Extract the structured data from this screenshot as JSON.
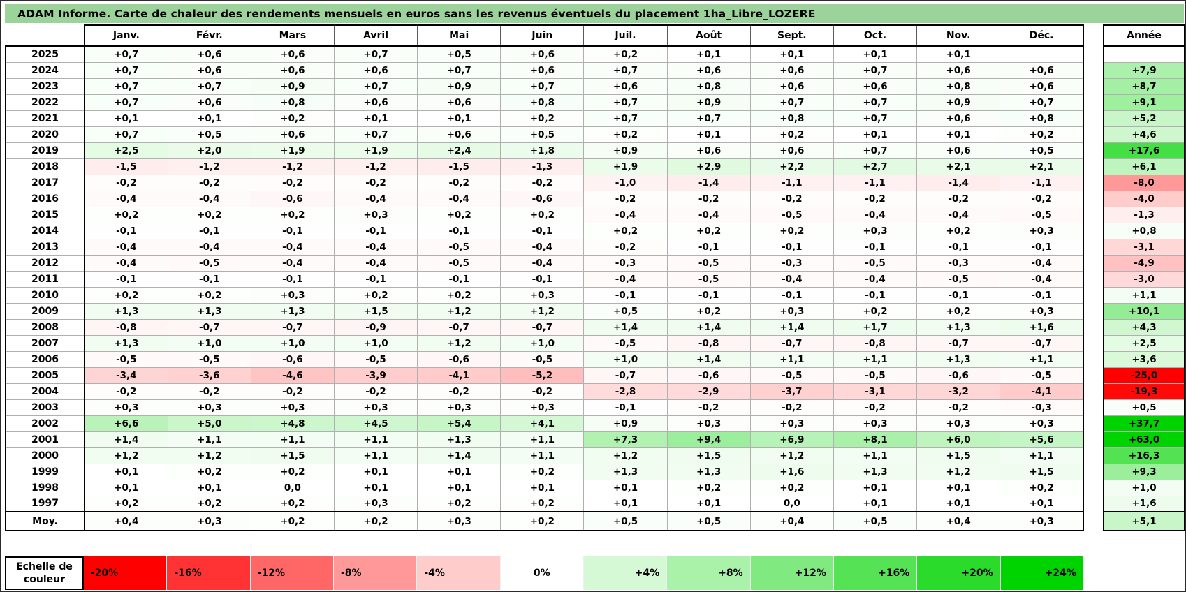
{
  "title": "ADAM Informe. Carte de chaleur des rendements mensuels en euros sans les revenus éventuels du placement 1ha_Libre_LOZERE",
  "colors": {
    "title_bg": "#9BD39B",
    "grid_line": "#B0B0B0",
    "table_border": "#000000",
    "zero_color": "#FFFFFF",
    "negative_max_color": "#FF0000",
    "positive_max_color": "#00D400"
  },
  "chart_data": {
    "type": "heatmap",
    "title": "ADAM Informe. Carte de chaleur des rendements mensuels en euros sans les revenus éventuels du placement 1ha_Libre_LOZERE",
    "columns": [
      "Janv.",
      "Févr.",
      "Mars",
      "Avril",
      "Mai",
      "Juin",
      "Juil.",
      "Août",
      "Sept.",
      "Oct.",
      "Nov.",
      "Déc."
    ],
    "annual_header": "Année",
    "rows": [
      "2025",
      "2024",
      "2023",
      "2022",
      "2021",
      "2020",
      "2019",
      "2018",
      "2017",
      "2016",
      "2015",
      "2014",
      "2013",
      "2012",
      "2011",
      "2010",
      "2009",
      "2008",
      "2007",
      "2006",
      "2005",
      "2004",
      "2003",
      "2002",
      "2001",
      "2000",
      "1999",
      "1998",
      "1997"
    ],
    "values": [
      [
        "+0,7",
        "+0,6",
        "+0,6",
        "+0,7",
        "+0,5",
        "+0,6",
        "+0,2",
        "+0,1",
        "+0,1",
        "+0,1",
        "+0,1",
        ""
      ],
      [
        "+0,7",
        "+0,6",
        "+0,6",
        "+0,6",
        "+0,7",
        "+0,6",
        "+0,7",
        "+0,6",
        "+0,6",
        "+0,7",
        "+0,6",
        "+0,6"
      ],
      [
        "+0,7",
        "+0,7",
        "+0,9",
        "+0,7",
        "+0,9",
        "+0,7",
        "+0,6",
        "+0,8",
        "+0,6",
        "+0,6",
        "+0,8",
        "+0,6"
      ],
      [
        "+0,7",
        "+0,6",
        "+0,8",
        "+0,6",
        "+0,6",
        "+0,8",
        "+0,7",
        "+0,9",
        "+0,7",
        "+0,7",
        "+0,9",
        "+0,7"
      ],
      [
        "+0,1",
        "+0,1",
        "+0,2",
        "+0,1",
        "+0,1",
        "+0,2",
        "+0,7",
        "+0,7",
        "+0,8",
        "+0,7",
        "+0,6",
        "+0,8"
      ],
      [
        "+0,7",
        "+0,5",
        "+0,6",
        "+0,7",
        "+0,6",
        "+0,5",
        "+0,2",
        "+0,1",
        "+0,2",
        "+0,1",
        "+0,1",
        "+0,2"
      ],
      [
        "+2,5",
        "+2,0",
        "+1,9",
        "+1,9",
        "+2,4",
        "+1,8",
        "+0,9",
        "+0,6",
        "+0,6",
        "+0,7",
        "+0,6",
        "+0,5"
      ],
      [
        "-1,5",
        "-1,2",
        "-1,2",
        "-1,2",
        "-1,5",
        "-1,3",
        "+1,9",
        "+2,9",
        "+2,2",
        "+2,7",
        "+2,1",
        "+2,1"
      ],
      [
        "-0,2",
        "-0,2",
        "-0,2",
        "-0,2",
        "-0,2",
        "-0,2",
        "-1,0",
        "-1,4",
        "-1,1",
        "-1,1",
        "-1,4",
        "-1,1"
      ],
      [
        "-0,4",
        "-0,4",
        "-0,6",
        "-0,4",
        "-0,4",
        "-0,6",
        "-0,2",
        "-0,2",
        "-0,2",
        "-0,2",
        "-0,2",
        "-0,2"
      ],
      [
        "+0,2",
        "+0,2",
        "+0,2",
        "+0,3",
        "+0,2",
        "+0,2",
        "-0,4",
        "-0,4",
        "-0,5",
        "-0,4",
        "-0,4",
        "-0,5"
      ],
      [
        "-0,1",
        "-0,1",
        "-0,1",
        "-0,1",
        "-0,1",
        "-0,1",
        "+0,2",
        "+0,2",
        "+0,2",
        "+0,3",
        "+0,2",
        "+0,3"
      ],
      [
        "-0,4",
        "-0,4",
        "-0,4",
        "-0,4",
        "-0,5",
        "-0,4",
        "-0,2",
        "-0,1",
        "-0,1",
        "-0,1",
        "-0,1",
        "-0,1"
      ],
      [
        "-0,4",
        "-0,5",
        "-0,4",
        "-0,4",
        "-0,5",
        "-0,4",
        "-0,3",
        "-0,5",
        "-0,3",
        "-0,5",
        "-0,3",
        "-0,4"
      ],
      [
        "-0,1",
        "-0,1",
        "-0,1",
        "-0,1",
        "-0,1",
        "-0,1",
        "-0,4",
        "-0,5",
        "-0,4",
        "-0,4",
        "-0,5",
        "-0,4"
      ],
      [
        "+0,2",
        "+0,2",
        "+0,3",
        "+0,2",
        "+0,2",
        "+0,3",
        "-0,1",
        "-0,1",
        "-0,1",
        "-0,1",
        "-0,1",
        "-0,1"
      ],
      [
        "+1,3",
        "+1,3",
        "+1,3",
        "+1,5",
        "+1,2",
        "+1,2",
        "+0,5",
        "+0,2",
        "+0,3",
        "+0,2",
        "+0,2",
        "+0,3"
      ],
      [
        "-0,8",
        "-0,7",
        "-0,7",
        "-0,9",
        "-0,7",
        "-0,7",
        "+1,4",
        "+1,4",
        "+1,4",
        "+1,7",
        "+1,3",
        "+1,6"
      ],
      [
        "+1,3",
        "+1,0",
        "+1,0",
        "+1,0",
        "+1,2",
        "+1,0",
        "-0,5",
        "-0,8",
        "-0,7",
        "-0,8",
        "-0,7",
        "-0,7"
      ],
      [
        "-0,5",
        "-0,5",
        "-0,6",
        "-0,5",
        "-0,6",
        "-0,5",
        "+1,0",
        "+1,4",
        "+1,1",
        "+1,1",
        "+1,3",
        "+1,1"
      ],
      [
        "-3,4",
        "-3,6",
        "-4,6",
        "-3,9",
        "-4,1",
        "-5,2",
        "-0,7",
        "-0,6",
        "-0,5",
        "-0,5",
        "-0,6",
        "-0,5"
      ],
      [
        "-0,2",
        "-0,2",
        "-0,2",
        "-0,2",
        "-0,2",
        "-0,2",
        "-2,8",
        "-2,9",
        "-3,7",
        "-3,1",
        "-3,2",
        "-4,1"
      ],
      [
        "+0,3",
        "+0,3",
        "+0,3",
        "+0,3",
        "+0,3",
        "+0,3",
        "-0,1",
        "-0,2",
        "-0,2",
        "-0,2",
        "-0,2",
        "-0,3"
      ],
      [
        "+6,6",
        "+5,0",
        "+4,8",
        "+4,5",
        "+5,4",
        "+4,1",
        "+0,9",
        "+0,3",
        "+0,3",
        "+0,3",
        "+0,3",
        "+0,3"
      ],
      [
        "+1,4",
        "+1,1",
        "+1,1",
        "+1,1",
        "+1,3",
        "+1,1",
        "+7,3",
        "+9,4",
        "+6,9",
        "+8,1",
        "+6,0",
        "+5,6"
      ],
      [
        "+1,2",
        "+1,2",
        "+1,5",
        "+1,1",
        "+1,4",
        "+1,1",
        "+1,2",
        "+1,5",
        "+1,2",
        "+1,1",
        "+1,5",
        "+1,1"
      ],
      [
        "+0,1",
        "+0,2",
        "+0,2",
        "+0,1",
        "+0,1",
        "+0,2",
        "+1,3",
        "+1,3",
        "+1,6",
        "+1,3",
        "+1,2",
        "+1,5"
      ],
      [
        "+0,1",
        "+0,1",
        "0,0",
        "+0,1",
        "+0,1",
        "+0,1",
        "+0,1",
        "+0,2",
        "+0,2",
        "+0,1",
        "+0,1",
        "+0,2"
      ],
      [
        "+0,2",
        "+0,2",
        "+0,2",
        "+0,3",
        "+0,2",
        "+0,2",
        "+0,1",
        "+0,1",
        "0,0",
        "+0,1",
        "+0,1",
        "+0,1"
      ]
    ],
    "annual": [
      "",
      "+7,9",
      "+8,7",
      "+9,1",
      "+5,2",
      "+4,6",
      "+17,6",
      "+6,1",
      "-8,0",
      "-4,0",
      "-1,3",
      "+0,8",
      "-3,1",
      "-4,9",
      "-3,0",
      "+1,1",
      "+10,1",
      "+4,3",
      "+2,5",
      "+3,6",
      "-25,0",
      "-19,3",
      "+0,5",
      "+37,7",
      "+63,0",
      "+16,3",
      "+9,3",
      "+1,0",
      "+1,6"
    ],
    "average": {
      "label": "Moy.",
      "values": [
        "+0,4",
        "+0,3",
        "+0,2",
        "+0,2",
        "+0,3",
        "+0,2",
        "+0,5",
        "+0,5",
        "+0,4",
        "+0,5",
        "+0,4",
        "+0,3"
      ],
      "annual": "+5,1"
    },
    "color_scale": {
      "negative_limit": 20,
      "positive_limit": 24,
      "negative_color": "#FF0000",
      "positive_color": "#00D400",
      "zero_color": "#FFFFFF",
      "stops": [
        {
          "label": "-20%",
          "value": -20
        },
        {
          "label": "-16%",
          "value": -16
        },
        {
          "label": "-12%",
          "value": -12
        },
        {
          "label": "-8%",
          "value": -8
        },
        {
          "label": "-4%",
          "value": -4
        },
        {
          "label": "0%",
          "value": 0
        },
        {
          "label": "+4%",
          "value": 4
        },
        {
          "label": "+8%",
          "value": 8
        },
        {
          "label": "+12%",
          "value": 12
        },
        {
          "label": "+16%",
          "value": 16
        },
        {
          "label": "+20%",
          "value": 20
        },
        {
          "label": "+24%",
          "value": 24
        }
      ]
    }
  },
  "legend": {
    "label_line1": "Echelle de",
    "label_line2": "couleur"
  }
}
